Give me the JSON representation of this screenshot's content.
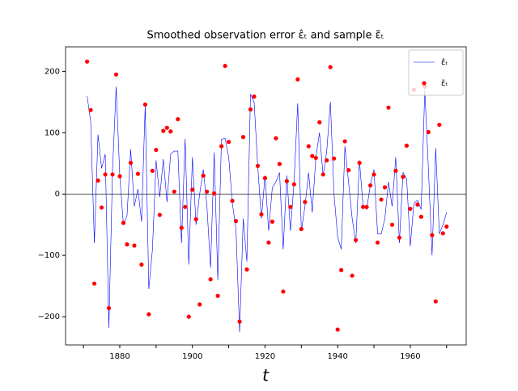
{
  "chart_data": {
    "type": "line_scatter",
    "title": "Smoothed observation error ε̂ₜ and sample ε̃ₜ",
    "x_label": "t",
    "x": [
      1871,
      1872,
      1873,
      1874,
      1875,
      1876,
      1877,
      1878,
      1879,
      1880,
      1881,
      1882,
      1883,
      1884,
      1885,
      1886,
      1887,
      1888,
      1889,
      1890,
      1891,
      1892,
      1893,
      1894,
      1895,
      1896,
      1897,
      1898,
      1899,
      1900,
      1901,
      1902,
      1903,
      1904,
      1905,
      1906,
      1907,
      1908,
      1909,
      1910,
      1911,
      1912,
      1913,
      1914,
      1915,
      1916,
      1917,
      1918,
      1919,
      1920,
      1921,
      1922,
      1923,
      1924,
      1925,
      1926,
      1927,
      1928,
      1929,
      1930,
      1931,
      1932,
      1933,
      1934,
      1935,
      1936,
      1937,
      1938,
      1939,
      1940,
      1941,
      1942,
      1943,
      1944,
      1945,
      1946,
      1947,
      1948,
      1949,
      1950,
      1951,
      1952,
      1953,
      1954,
      1955,
      1956,
      1957,
      1958,
      1959,
      1960,
      1961,
      1962,
      1963,
      1964,
      1965,
      1966,
      1967,
      1968,
      1969,
      1970
    ],
    "series": [
      {
        "name": "ε̂ₜ",
        "kind": "line",
        "color": "#0000ff",
        "values": [
          160,
          118,
          -80,
          97,
          42,
          65,
          -218,
          38,
          175,
          30,
          -50,
          -35,
          73,
          -20,
          8,
          -45,
          145,
          -155,
          -90,
          55,
          -5,
          57,
          -13,
          65,
          70,
          70,
          -80,
          90,
          -115,
          60,
          -50,
          0,
          40,
          -20,
          -120,
          68,
          -140,
          89,
          91,
          60,
          -15,
          -57,
          -225,
          -40,
          -110,
          163,
          150,
          45,
          -40,
          30,
          -60,
          10,
          20,
          35,
          -90,
          30,
          -60,
          20,
          148,
          -60,
          -20,
          35,
          -30,
          60,
          100,
          30,
          70,
          150,
          0,
          -70,
          -90,
          78,
          20,
          -40,
          -80,
          55,
          -20,
          -25,
          15,
          40,
          -65,
          -65,
          -40,
          20,
          -20,
          60,
          -80,
          35,
          25,
          -85,
          -15,
          -10,
          -25,
          170,
          40,
          -100,
          75,
          -65,
          -50,
          -30
        ]
      },
      {
        "name": "ε̃ₜ",
        "kind": "scatter",
        "color": "#ff0000",
        "values": [
          216,
          137,
          -146,
          22,
          -22,
          32,
          -186,
          32,
          195,
          29,
          -47,
          -82,
          51,
          -84,
          33,
          -115,
          146,
          -196,
          38,
          72,
          -34,
          103,
          108,
          102,
          4,
          122,
          -55,
          -21,
          -200,
          7,
          -41,
          -180,
          30,
          4,
          -139,
          1,
          -166,
          78,
          209,
          85,
          -11,
          -44,
          -208,
          93,
          -123,
          138,
          159,
          46,
          -33,
          26,
          -79,
          -45,
          91,
          49,
          -159,
          21,
          -21,
          16,
          187,
          -57,
          -13,
          78,
          62,
          59,
          117,
          32,
          55,
          207,
          58,
          -221,
          -124,
          86,
          39,
          -133,
          -75,
          51,
          -21,
          -21,
          14,
          32,
          -79,
          -9,
          11,
          141,
          -50,
          38,
          -71,
          28,
          79,
          -24,
          170,
          -17,
          -37,
          175,
          101,
          -67,
          -175,
          113,
          -64,
          -53
        ]
      }
    ],
    "xlim": [
      1865.07,
      1975.4
    ],
    "xticks": [
      1880,
      1900,
      1920,
      1940,
      1960
    ],
    "xminorticks": [
      1870,
      1890,
      1910,
      1930,
      1950,
      1970
    ],
    "ylim": [
      -246,
      240
    ],
    "yticks": [
      {
        "value": -200,
        "label": "−200"
      },
      {
        "value": -100,
        "label": "−100"
      },
      0,
      100,
      200
    ],
    "hline": 0,
    "legend": "upper right"
  }
}
